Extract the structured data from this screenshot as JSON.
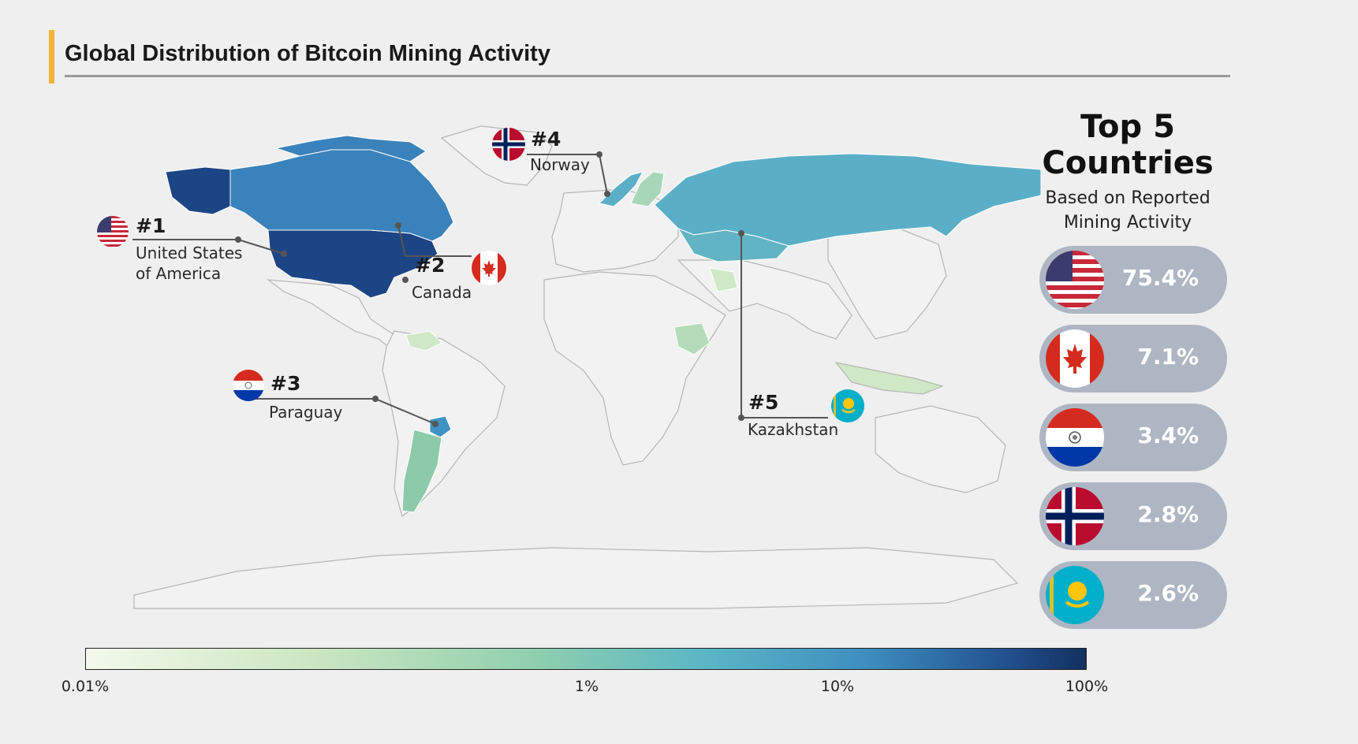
{
  "title": "Global Distribution of Bitcoin Mining Activity",
  "panel": {
    "title_line1": "Top 5",
    "title_line2": "Countries",
    "subtitle_line1": "Based on Reported",
    "subtitle_line2": "Mining Activity"
  },
  "callouts": [
    {
      "rank": "#1",
      "name_line1": "United States",
      "name_line2": "of America"
    },
    {
      "rank": "#2",
      "name_line1": "Canada"
    },
    {
      "rank": "#3",
      "name_line1": "Paraguay"
    },
    {
      "rank": "#4",
      "name_line1": "Norway"
    },
    {
      "rank": "#5",
      "name_line1": "Kazakhstan"
    }
  ],
  "top5": [
    {
      "country": "United States of America",
      "value": "75.4%",
      "flag": "us-flag-icon"
    },
    {
      "country": "Canada",
      "value": "7.1%",
      "flag": "canada-flag-icon"
    },
    {
      "country": "Paraguay",
      "value": "3.4%",
      "flag": "paraguay-flag-icon"
    },
    {
      "country": "Norway",
      "value": "2.8%",
      "flag": "norway-flag-icon"
    },
    {
      "country": "Kazakhstan",
      "value": "2.6%",
      "flag": "kazakhstan-flag-icon"
    }
  ],
  "legend": {
    "scale": "log",
    "ticks": [
      "0.01%",
      "1%",
      "10%",
      "100%"
    ],
    "colors": [
      "#f3f9ec",
      "#8fcfae",
      "#5ab6c6",
      "#3e8ebf",
      "#13305f"
    ]
  },
  "colors": {
    "accent": "#f2b53a",
    "pill": "#aeb6c3",
    "usa": "#1c4585",
    "canada": "#3a82bb",
    "russia": "#5aafc7",
    "kazakhstan": "#62b4c4",
    "paraguay": "#3f93c4",
    "argentina": "#8ccaa9",
    "low": "#cfe8c6"
  }
}
